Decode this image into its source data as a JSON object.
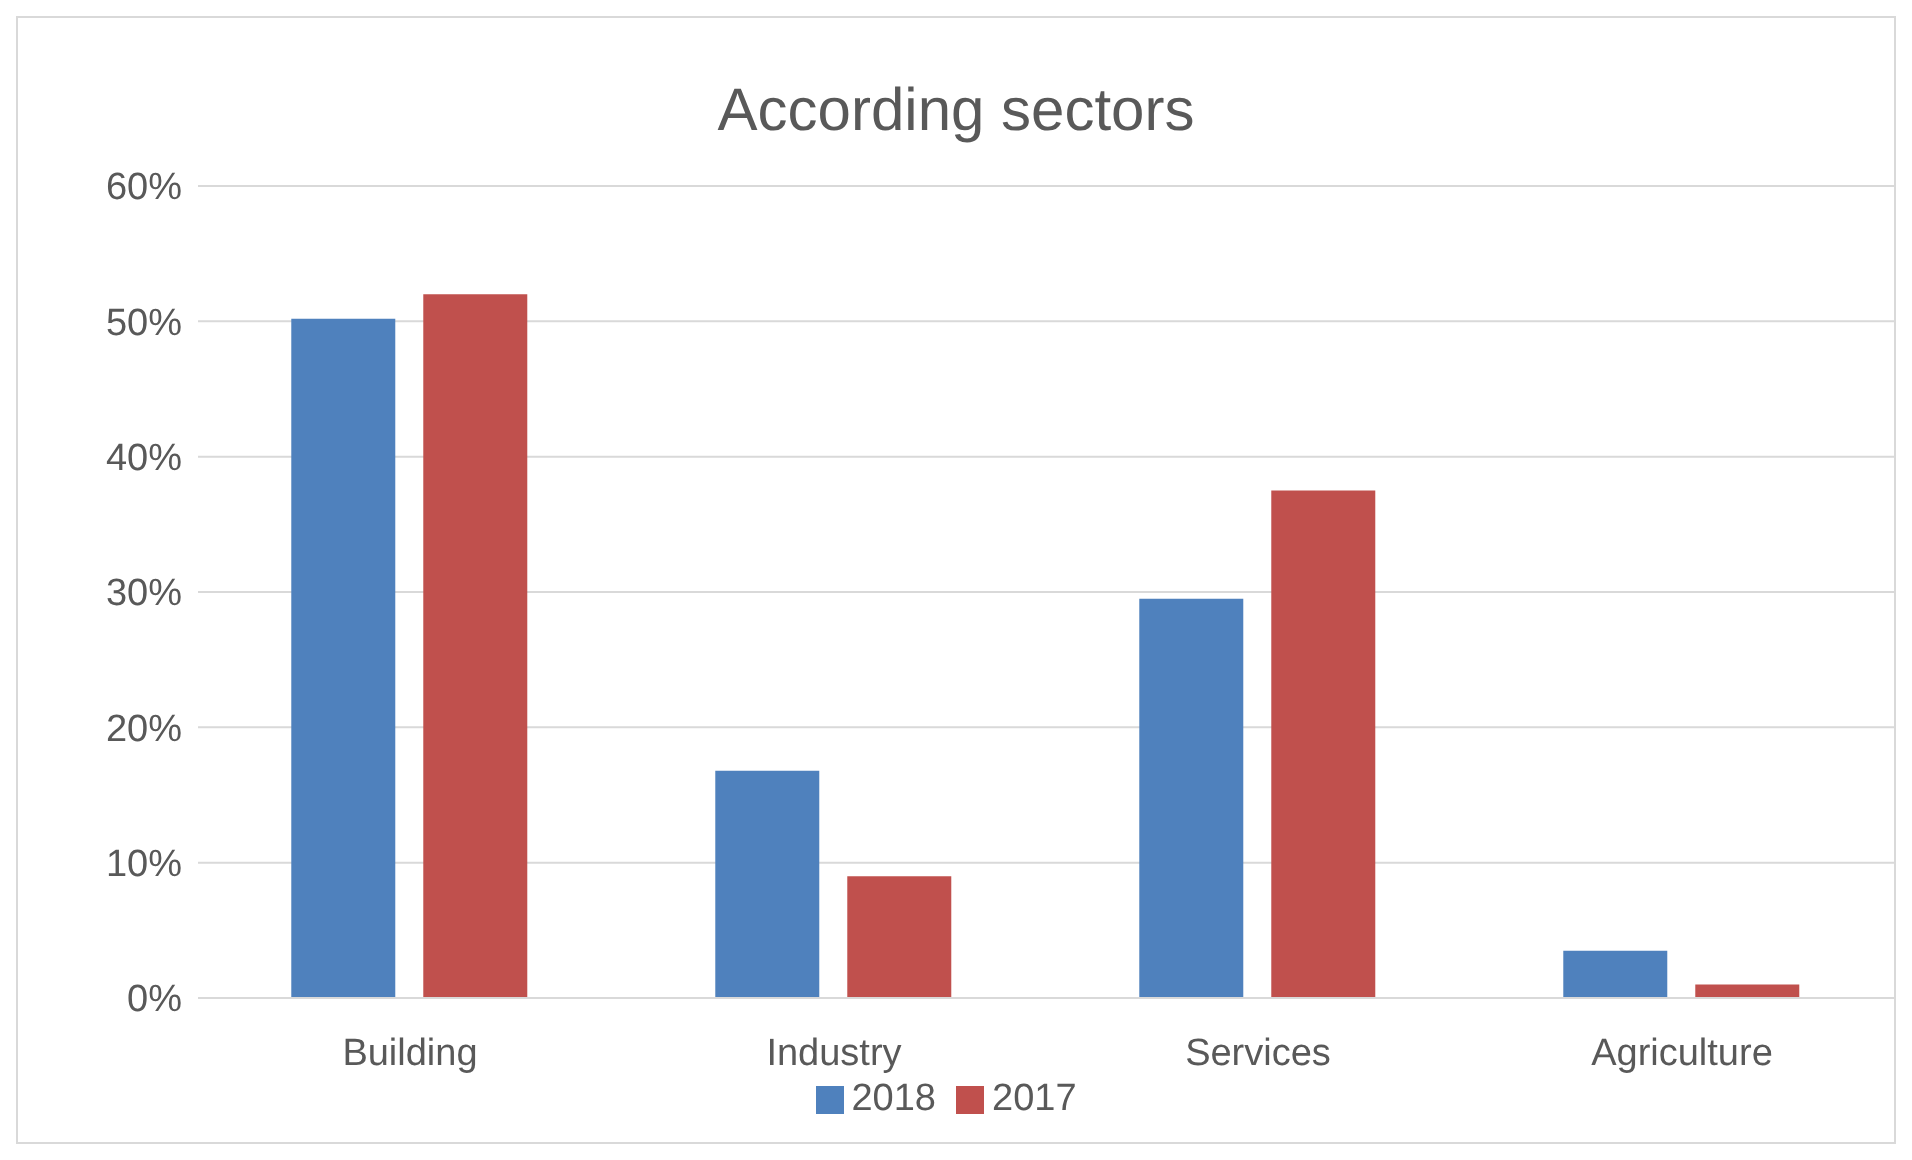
{
  "chart_data": {
    "type": "bar",
    "title": "According sectors",
    "categories": [
      "Building",
      "Industry",
      "Services",
      "Agriculture"
    ],
    "series": [
      {
        "name": "2018",
        "color": "#4f81bd",
        "values": [
          50.2,
          16.8,
          29.5,
          3.5
        ]
      },
      {
        "name": "2017",
        "color": "#c0504d",
        "values": [
          52.0,
          9.0,
          37.5,
          1.0
        ]
      }
    ],
    "ylim": [
      0,
      60
    ],
    "yticks": [
      {
        "value": 0,
        "label": "0%"
      },
      {
        "value": 10,
        "label": "10%"
      },
      {
        "value": 20,
        "label": "20%"
      },
      {
        "value": 30,
        "label": "30%"
      },
      {
        "value": 40,
        "label": "40%"
      },
      {
        "value": 50,
        "label": "50%"
      },
      {
        "value": 60,
        "label": "60%"
      }
    ],
    "grid": "y",
    "legend": "bottom"
  }
}
